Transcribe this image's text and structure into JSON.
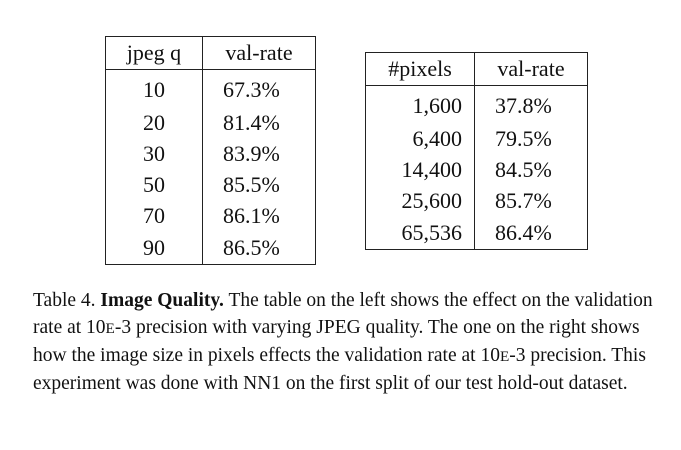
{
  "table_left": {
    "headers": [
      "jpeg q",
      "val-rate"
    ],
    "rows": [
      [
        "10",
        "67.3%"
      ],
      [
        "20",
        "81.4%"
      ],
      [
        "30",
        "83.9%"
      ],
      [
        "50",
        "85.5%"
      ],
      [
        "70",
        "86.1%"
      ],
      [
        "90",
        "86.5%"
      ]
    ]
  },
  "table_right": {
    "headers": [
      "#pixels",
      "val-rate"
    ],
    "rows": [
      [
        "1,600",
        "37.8%"
      ],
      [
        "6,400",
        "79.5%"
      ],
      [
        "14,400",
        "84.5%"
      ],
      [
        "25,600",
        "85.7%"
      ],
      [
        "65,536",
        "86.4%"
      ]
    ]
  },
  "caption": {
    "label": "Table 4.",
    "heading": "Image Quality.",
    "part1": "The table on the left shows the effect on the validation rate at 10",
    "sc1": "E",
    "part2": "-3 precision with varying JPEG quality. The one on the right shows how the image size in pixels effects the validation rate at 10",
    "sc2": "E",
    "part3": "-3 precision. This experiment was done with NN1 on the first split of our test hold-out dataset."
  }
}
